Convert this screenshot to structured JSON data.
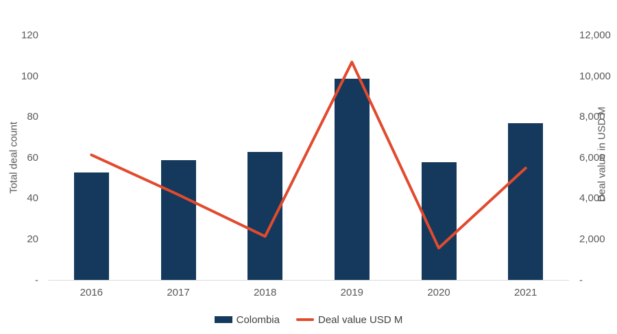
{
  "chart_data": {
    "type": "bar",
    "subtype": "combo-bar-line-dual-axis",
    "categories": [
      "2016",
      "2017",
      "2018",
      "2019",
      "2020",
      "2021"
    ],
    "series": [
      {
        "name": "Colombia",
        "type": "bar",
        "axis": "left",
        "color": "#14395c",
        "values": [
          53,
          59,
          63,
          99,
          58,
          77
        ]
      },
      {
        "name": "Deal value USD M",
        "type": "line",
        "axis": "right",
        "color": "#e24a2e",
        "values": [
          6150,
          4200,
          2150,
          10700,
          1580,
          5500
        ]
      }
    ],
    "title": "",
    "xlabel": "",
    "ylabel_left": "Total deal count",
    "ylabel_right": "Deal value in USD M",
    "ylim_left": [
      0,
      120
    ],
    "ylim_right": [
      0,
      12000
    ],
    "yticks_left": [
      0,
      20,
      40,
      60,
      80,
      100,
      120
    ],
    "yticks_right": [
      0,
      2000,
      4000,
      6000,
      8000,
      10000,
      12000
    ],
    "zero_tick_label": "-",
    "grid": false,
    "legend_position": "bottom-center"
  },
  "legend": {
    "bar_label": "Colombia",
    "line_label": "Deal value USD M"
  },
  "colors": {
    "bar": "#14395c",
    "line": "#e24a2e",
    "axis_line": "#dbdbdb",
    "tick_text": "#595959",
    "legend_text": "#404040",
    "background": "#ffffff"
  }
}
